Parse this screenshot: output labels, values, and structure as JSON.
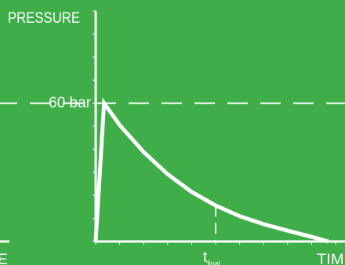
{
  "colors": {
    "background": "#3fae49",
    "foreground": "#ffffff"
  },
  "chart_data": {
    "type": "line",
    "title": "",
    "ylabel": "PRESSURE",
    "xlabel": "TIME",
    "xlabel_left_fragment": "E",
    "reference_line": {
      "value": 60,
      "label": "60 bar"
    },
    "marker": {
      "label_main": "t",
      "label_sub": "final",
      "x": 0.5
    },
    "ylim": [
      0,
      100
    ],
    "xlim": [
      0,
      1
    ],
    "grid": false,
    "legend": "none",
    "series": [
      {
        "points": [
          [
            0.0,
            0
          ],
          [
            0.035,
            60
          ],
          [
            0.1,
            50.5
          ],
          [
            0.2,
            38.8
          ],
          [
            0.3,
            29.2
          ],
          [
            0.4,
            21.5
          ],
          [
            0.5,
            15.6
          ],
          [
            0.6,
            11
          ],
          [
            0.7,
            7.5
          ],
          [
            0.8,
            4.7
          ],
          [
            0.9,
            2
          ],
          [
            0.97,
            0
          ]
        ]
      }
    ]
  }
}
